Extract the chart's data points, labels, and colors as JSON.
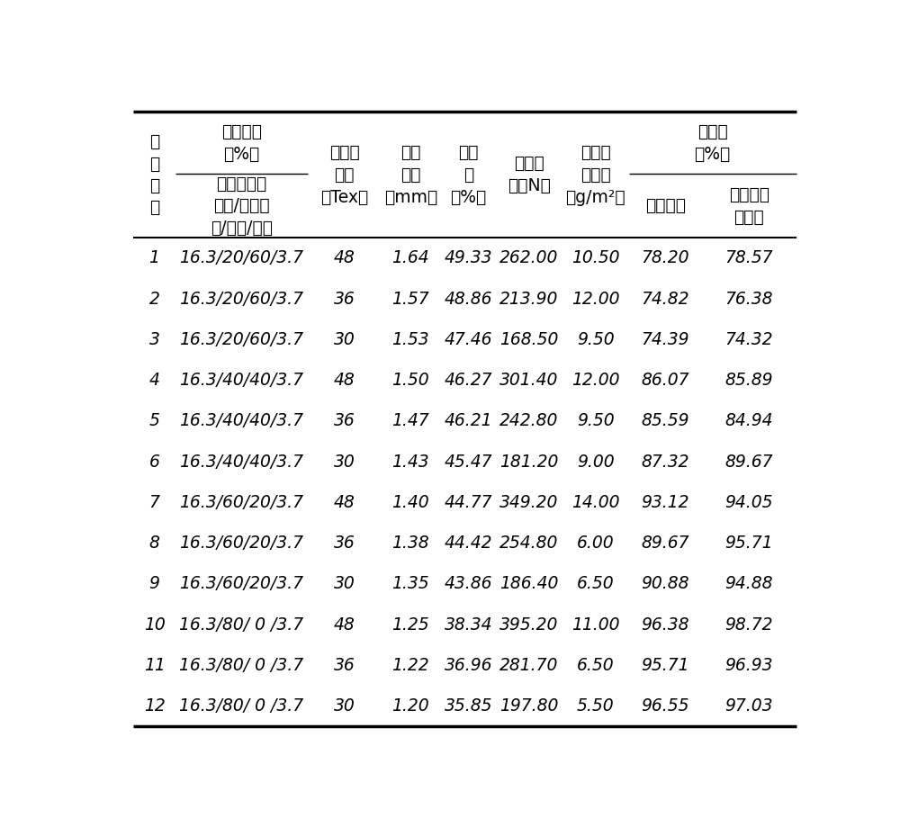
{
  "rows": [
    [
      "1",
      "16.3/20/60/3.7",
      "48",
      "1.64",
      "49.33",
      "262.00",
      "10.50",
      "78.20",
      "78.57"
    ],
    [
      "2",
      "16.3/20/60/3.7",
      "36",
      "1.57",
      "48.86",
      "213.90",
      "12.00",
      "74.82",
      "76.38"
    ],
    [
      "3",
      "16.3/20/60/3.7",
      "30",
      "1.53",
      "47.46",
      "168.50",
      "9.50",
      "74.39",
      "74.32"
    ],
    [
      "4",
      "16.3/40/40/3.7",
      "48",
      "1.50",
      "46.27",
      "301.40",
      "12.00",
      "86.07",
      "85.89"
    ],
    [
      "5",
      "16.3/40/40/3.7",
      "36",
      "1.47",
      "46.21",
      "242.80",
      "9.50",
      "85.59",
      "84.94"
    ],
    [
      "6",
      "16.3/40/40/3.7",
      "30",
      "1.43",
      "45.47",
      "181.20",
      "9.00",
      "87.32",
      "89.67"
    ],
    [
      "7",
      "16.3/60/20/3.7",
      "48",
      "1.40",
      "44.77",
      "349.20",
      "14.00",
      "93.12",
      "94.05"
    ],
    [
      "8",
      "16.3/60/20/3.7",
      "36",
      "1.38",
      "44.42",
      "254.80",
      "6.00",
      "89.67",
      "95.71"
    ],
    [
      "9",
      "16.3/60/20/3.7",
      "30",
      "1.35",
      "43.86",
      "186.40",
      "6.50",
      "90.88",
      "94.88"
    ],
    [
      "10",
      "16.3/80/ 0 /3.7",
      "48",
      "1.25",
      "38.34",
      "395.20",
      "11.00",
      "96.38",
      "98.72"
    ],
    [
      "11",
      "16.3/80/ 0 /3.7",
      "36",
      "1.22",
      "36.96",
      "281.70",
      "6.50",
      "95.71",
      "96.93"
    ],
    [
      "12",
      "16.3/80/ 0 /3.7",
      "30",
      "1.20",
      "35.85",
      "197.80",
      "5.50",
      "96.55",
      "97.03"
    ]
  ],
  "bg_color": "#ffffff",
  "text_color": "#000000",
  "line_color": "#000000",
  "figsize": [
    10.0,
    9.19
  ],
  "dpi": 100
}
